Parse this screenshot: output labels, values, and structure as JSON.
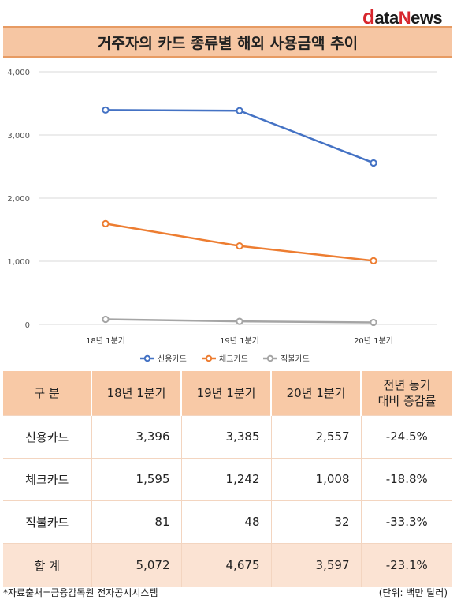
{
  "brand": {
    "logo_d": "d",
    "logo_ata": "ata",
    "logo_n": "N",
    "logo_ews": "ews"
  },
  "title": "거주자의 카드 종류별 해외 사용금액 추이",
  "chart_data": {
    "type": "line",
    "title": "거주자의 카드 종류별 해외 사용금액 추이",
    "categories": [
      "18년 1분기",
      "19년 1분기",
      "20년 1분기"
    ],
    "series": [
      {
        "name": "신용카드",
        "values": [
          3396,
          3385,
          2557
        ],
        "color": "#4472c4"
      },
      {
        "name": "체크카드",
        "values": [
          1595,
          1242,
          1008
        ],
        "color": "#ed7d31"
      },
      {
        "name": "직불카드",
        "values": [
          81,
          48,
          32
        ],
        "color": "#a5a5a5"
      }
    ],
    "ylim": [
      0,
      4000
    ],
    "yticks": [
      0,
      1000,
      2000,
      3000,
      4000
    ],
    "ytick_labels": [
      "0",
      "1,000",
      "2,000",
      "3,000",
      "4,000"
    ],
    "grid": true,
    "legend": "bottom"
  },
  "table": {
    "headers": [
      [
        "구  분"
      ],
      [
        "18년 1분기"
      ],
      [
        "19년 1분기"
      ],
      [
        "20년 1분기"
      ],
      [
        "전년 동기",
        "대비 증감률"
      ]
    ],
    "rows": [
      {
        "label": "신용카드",
        "values": [
          "3,396",
          "3,385",
          "2,557"
        ],
        "change": "-24.5%"
      },
      {
        "label": "체크카드",
        "values": [
          "1,595",
          "1,242",
          "1,008"
        ],
        "change": "-18.8%"
      },
      {
        "label": "직불카드",
        "values": [
          "81",
          "48",
          "32"
        ],
        "change": "-33.3%"
      }
    ],
    "total": {
      "label": "합  계",
      "values": [
        "5,072",
        "4,675",
        "3,597"
      ],
      "change": "-23.1%"
    }
  },
  "footer": {
    "source": "*자료출처=금융감독원 전자공시시스템",
    "unit": "(단위: 백만 달러)"
  }
}
